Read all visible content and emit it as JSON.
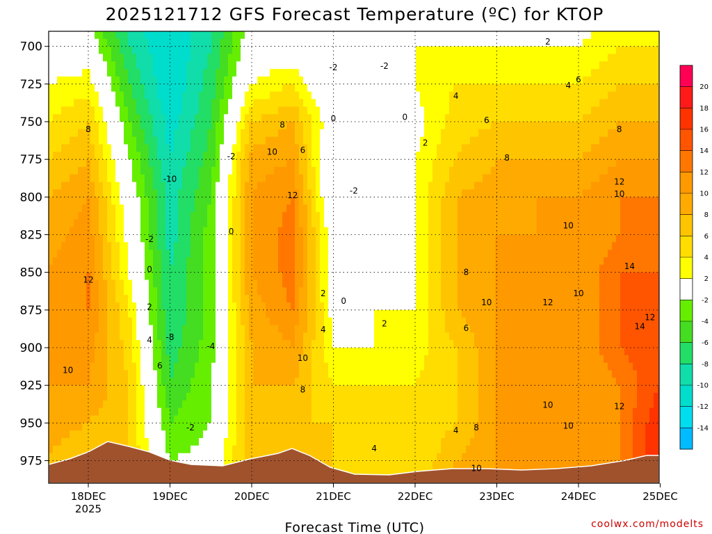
{
  "chart_data": {
    "type": "heatmap",
    "title": "2025121712 GFS Forecast Temperature (ºC) for KTOP",
    "xlabel": "Forecast Time (UTC)",
    "ylabel": "",
    "credit": "coolwx.com/modelts",
    "x_ticks": [
      "18DEC",
      "19DEC",
      "20DEC",
      "21DEC",
      "22DEC",
      "23DEC",
      "24DEC",
      "25DEC"
    ],
    "x_year_label": "2025",
    "y_ticks": [
      "700",
      "725",
      "750",
      "775",
      "800",
      "825",
      "850",
      "875",
      "900",
      "925",
      "950",
      "975"
    ],
    "ylim": [
      690,
      990
    ],
    "grid": true,
    "colorbar": {
      "levels": [
        -14,
        -12,
        -10,
        -8,
        -6,
        -4,
        -2,
        2,
        4,
        6,
        8,
        10,
        12,
        14,
        16,
        18,
        20
      ],
      "tick_labels": [
        "20",
        "18",
        "16",
        "14",
        "12",
        "10",
        "8",
        "6",
        "4",
        "2",
        "-2",
        "-4",
        "-6",
        "-8",
        "-10",
        "-12",
        "-14"
      ],
      "colors": [
        "#ff0055",
        "#ff1a1a",
        "#ff3300",
        "#ff5500",
        "#ff7700",
        "#ff9900",
        "#ffaa00",
        "#ffc400",
        "#ffdd00",
        "#ffff00",
        "#ffffff",
        "#66ee00",
        "#44dd22",
        "#22dd66",
        "#11ddaa",
        "#00ddcc",
        "#00ddee",
        "#00bbff"
      ]
    },
    "profiles": [
      {
        "time": "17DEC 12Z",
        "temps": [
          0,
          2,
          4,
          6,
          8,
          9,
          10,
          10,
          10,
          10,
          9,
          8
        ]
      },
      {
        "time": "18DEC 00Z",
        "temps": [
          0,
          3,
          6,
          8,
          10,
          11,
          12,
          12,
          11,
          10,
          8,
          6
        ]
      },
      {
        "time": "18DEC 12Z",
        "temps": [
          -8,
          -6,
          -4,
          -2,
          0,
          1,
          2,
          4,
          5,
          6,
          6,
          6
        ]
      },
      {
        "time": "19DEC 00Z",
        "temps": [
          -12,
          -12,
          -11,
          -10,
          -9,
          -9,
          -8,
          -8,
          -7,
          -6,
          -4,
          -2
        ]
      },
      {
        "time": "19DEC 12Z",
        "temps": [
          -8,
          -7,
          -6,
          -5,
          -4,
          -3,
          -3,
          -3,
          -3,
          -2,
          -2,
          -1
        ]
      },
      {
        "time": "20DEC 00Z",
        "temps": [
          0,
          2,
          6,
          9,
          10,
          10,
          10,
          9,
          8,
          8,
          8,
          8
        ]
      },
      {
        "time": "20DEC 12Z",
        "temps": [
          0,
          4,
          8,
          10,
          12,
          13,
          13,
          12,
          10,
          8,
          6,
          6
        ]
      },
      {
        "time": "21DEC 00Z",
        "temps": [
          -2,
          -2,
          0,
          -2,
          -2,
          0,
          0,
          1,
          2,
          4,
          6,
          6
        ]
      },
      {
        "time": "21DEC 12Z",
        "temps": [
          -2,
          -2,
          -1,
          0,
          0,
          0,
          1,
          2,
          2,
          4,
          4,
          4
        ]
      },
      {
        "time": "22DEC 00Z",
        "temps": [
          2,
          2,
          1,
          2,
          2,
          2,
          2,
          2,
          3,
          4,
          4,
          4
        ]
      },
      {
        "time": "22DEC 12Z",
        "temps": [
          2,
          4,
          5,
          6,
          8,
          8,
          8,
          8,
          6,
          6,
          6,
          8
        ]
      },
      {
        "time": "23DEC 00Z",
        "temps": [
          2,
          4,
          6,
          8,
          9,
          10,
          10,
          10,
          10,
          10,
          10,
          10
        ]
      },
      {
        "time": "23DEC 12Z",
        "temps": [
          2,
          4,
          6,
          8,
          10,
          10,
          12,
          12,
          12,
          10,
          10,
          10
        ]
      },
      {
        "time": "24DEC 00Z",
        "temps": [
          2,
          4,
          6,
          8,
          10,
          10,
          10,
          10,
          10,
          10,
          10,
          10
        ]
      },
      {
        "time": "24DEC 12Z",
        "temps": [
          4,
          6,
          8,
          10,
          12,
          12,
          14,
          14,
          14,
          12,
          12,
          12
        ]
      },
      {
        "time": "25DEC 00Z",
        "temps": [
          4,
          6,
          8,
          10,
          12,
          12,
          14,
          14,
          16,
          16,
          18,
          18
        ]
      }
    ],
    "contour_labels": [
      {
        "text": "8",
        "time": "18DEC",
        "p": 755
      },
      {
        "text": "12",
        "time": "18DEC",
        "p": 855
      },
      {
        "text": "10",
        "time": "17DEC 18Z",
        "p": 915
      },
      {
        "text": "-2",
        "time": "18DEC 18Z",
        "p": 828
      },
      {
        "text": "0",
        "time": "18DEC 18Z",
        "p": 848
      },
      {
        "text": "2",
        "time": "18DEC 18Z",
        "p": 873
      },
      {
        "text": "4",
        "time": "18DEC 18Z",
        "p": 895
      },
      {
        "text": "6",
        "time": "18DEC 21Z",
        "p": 912
      },
      {
        "text": "-10",
        "time": "19DEC",
        "p": 788
      },
      {
        "text": "-8",
        "time": "19DEC",
        "p": 893
      },
      {
        "text": "-4",
        "time": "19DEC 12Z",
        "p": 899
      },
      {
        "text": "-2",
        "time": "19DEC 06Z",
        "p": 953
      },
      {
        "text": "-2",
        "time": "19DEC 18Z",
        "p": 773
      },
      {
        "text": "0",
        "time": "19DEC 18Z",
        "p": 823
      },
      {
        "text": "8",
        "time": "20DEC 09Z",
        "p": 752
      },
      {
        "text": "6",
        "time": "20DEC 15Z",
        "p": 769
      },
      {
        "text": "10",
        "time": "20DEC 06Z",
        "p": 770
      },
      {
        "text": "12",
        "time": "20DEC 12Z",
        "p": 799
      },
      {
        "text": "10",
        "time": "20DEC 15Z",
        "p": 907
      },
      {
        "text": "8",
        "time": "20DEC 15Z",
        "p": 928
      },
      {
        "text": "2",
        "time": "20DEC 21Z",
        "p": 864
      },
      {
        "text": "4",
        "time": "20DEC 21Z",
        "p": 888
      },
      {
        "text": "0",
        "time": "21DEC",
        "p": 748
      },
      {
        "text": "-2",
        "time": "21DEC",
        "p": 714
      },
      {
        "text": "-2",
        "time": "21DEC 15Z",
        "p": 713
      },
      {
        "text": "-2",
        "time": "21DEC 06Z",
        "p": 796
      },
      {
        "text": "0",
        "time": "21DEC 03Z",
        "p": 869
      },
      {
        "text": "2",
        "time": "21DEC 15Z",
        "p": 884
      },
      {
        "text": "4",
        "time": "21DEC 12Z",
        "p": 967
      },
      {
        "text": "0",
        "time": "21DEC 21Z",
        "p": 747
      },
      {
        "text": "2",
        "time": "22DEC 03Z",
        "p": 764
      },
      {
        "text": "4",
        "time": "22DEC 12Z",
        "p": 733
      },
      {
        "text": "4",
        "time": "22DEC 12Z",
        "p": 955
      },
      {
        "text": "6",
        "time": "22DEC 15Z",
        "p": 887
      },
      {
        "text": "8",
        "time": "22DEC 15Z",
        "p": 850
      },
      {
        "text": "8",
        "time": "22DEC 18Z",
        "p": 953
      },
      {
        "text": "10",
        "time": "22DEC 18Z",
        "p": 980
      },
      {
        "text": "10",
        "time": "22DEC 21Z",
        "p": 870
      },
      {
        "text": "6",
        "time": "22DEC 21Z",
        "p": 749
      },
      {
        "text": "8",
        "time": "23DEC 03Z",
        "p": 774
      },
      {
        "text": "12",
        "time": "23DEC 15Z",
        "p": 870
      },
      {
        "text": "10",
        "time": "23DEC 15Z",
        "p": 938
      },
      {
        "text": "10",
        "time": "23DEC 21Z",
        "p": 819
      },
      {
        "text": "10",
        "time": "23DEC 21Z",
        "p": 952
      },
      {
        "text": "2",
        "time": "23DEC 15Z",
        "p": 697
      },
      {
        "text": "4",
        "time": "23DEC 21Z",
        "p": 726
      },
      {
        "text": "6",
        "time": "24DEC",
        "p": 722
      },
      {
        "text": "8",
        "time": "24DEC 12Z",
        "p": 755
      },
      {
        "text": "10",
        "time": "24DEC",
        "p": 864
      },
      {
        "text": "10",
        "time": "24DEC 12Z",
        "p": 798
      },
      {
        "text": "12",
        "time": "24DEC 12Z",
        "p": 790
      },
      {
        "text": "12",
        "time": "24DEC 12Z",
        "p": 939
      },
      {
        "text": "14",
        "time": "24DEC 15Z",
        "p": 846
      },
      {
        "text": "14",
        "time": "24DEC 18Z",
        "p": 886
      },
      {
        "text": "12",
        "time": "24DEC 21Z",
        "p": 880
      }
    ]
  }
}
